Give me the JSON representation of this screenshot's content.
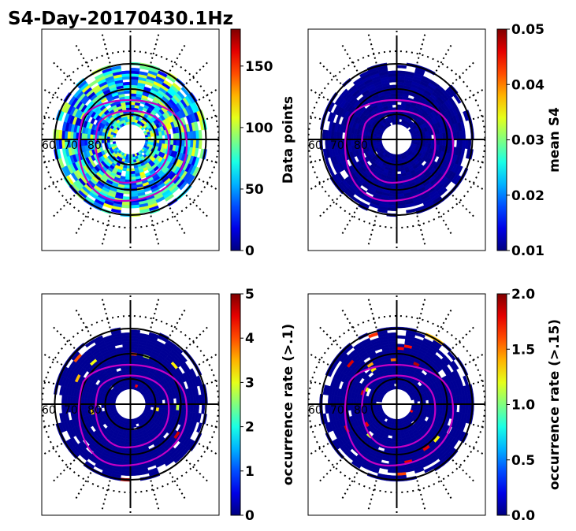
{
  "figure": {
    "title": "S4-Day-20170430.1Hz"
  },
  "chart_data": [
    {
      "type": "heatmap",
      "projection": "polar",
      "panel": "top-left",
      "colorbar_label": "Data points",
      "colorbar_range": [
        0,
        180
      ],
      "colorbar_ticks": [
        "0",
        "50",
        "100",
        "150"
      ],
      "colorbar_tick_values": [
        0,
        50,
        100,
        150
      ],
      "colormap": "jet",
      "latitude_label": "60",
      "latitude_label2": "70",
      "latitude_label3": "80",
      "typical_level": 0.35,
      "variability": 0.55
    },
    {
      "type": "heatmap",
      "projection": "polar",
      "panel": "top-right",
      "colorbar_label": "mean S4",
      "colorbar_range": [
        0.01,
        0.05
      ],
      "colorbar_ticks": [
        "0.01",
        "0.02",
        "0.03",
        "0.04",
        "0.05"
      ],
      "colorbar_tick_values": [
        0.01,
        0.02,
        0.03,
        0.04,
        0.05
      ],
      "colormap": "jet",
      "latitude_label": "60",
      "latitude_label2": "70",
      "latitude_label3": "80",
      "typical_level": 0.02,
      "variability": 0.03
    },
    {
      "type": "heatmap",
      "projection": "polar",
      "panel": "bottom-left",
      "colorbar_label": "occurrence rate (>.1)",
      "colorbar_range": [
        0,
        5
      ],
      "colorbar_ticks": [
        "0",
        "1",
        "2",
        "3",
        "4",
        "5"
      ],
      "colorbar_tick_values": [
        0,
        1,
        2,
        3,
        4,
        5
      ],
      "colormap": "jet",
      "latitude_label": "60",
      "latitude_label2": "70",
      "latitude_label3": "80",
      "typical_level": 0.0,
      "variability": 0.0
    },
    {
      "type": "heatmap",
      "projection": "polar",
      "panel": "bottom-right",
      "colorbar_label": "occurrence rate (>.15)",
      "colorbar_range": [
        0.0,
        2.0
      ],
      "colorbar_ticks": [
        "0.0",
        "0.5",
        "1.0",
        "1.5",
        "2.0"
      ],
      "colorbar_tick_values": [
        0.0,
        0.5,
        1.0,
        1.5,
        2.0
      ],
      "colormap": "jet",
      "latitude_label": "60",
      "latitude_label2": "70",
      "latitude_label3": "80",
      "typical_level": 0.0,
      "variability": 0.0
    }
  ]
}
